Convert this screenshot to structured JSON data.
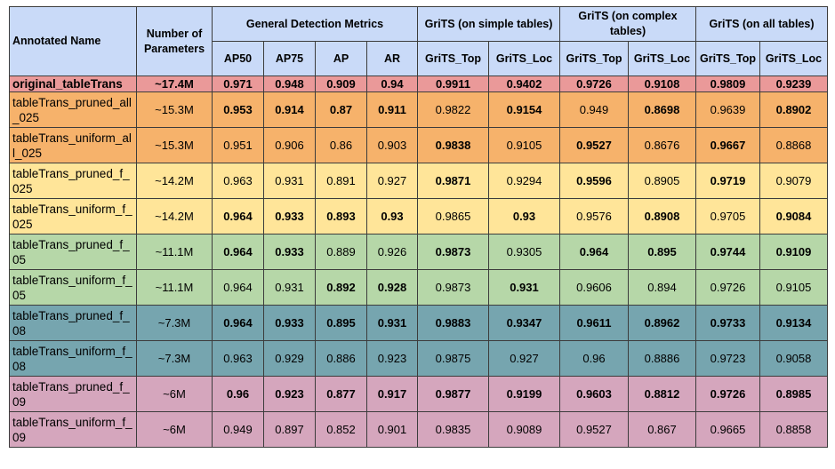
{
  "headers": {
    "annotated_name": "Annotated Name",
    "num_params": "Number of Parameters",
    "groups": [
      "General Detection Metrics",
      "GriTS (on simple tables)",
      "GriTS (on complex tables)",
      "GriTS (on all tables)"
    ],
    "columns": [
      "AP50",
      "AP75",
      "AP",
      "AR",
      "GriTS_Top",
      "GriTS_Loc",
      "GriTS_Top",
      "GriTS_Loc",
      "GriTS_Top",
      "GriTS_Loc"
    ]
  },
  "colors": {
    "header": "#c9daf8",
    "original": "#ea9999",
    "all_025": "#f6b26b",
    "f_025": "#ffe599",
    "f_05": "#b6d7a8",
    "f_08": "#76a5af",
    "f_09": "#d5a6bd"
  },
  "rows": [
    {
      "name": "original_tableTrans",
      "params": "~17.4M",
      "color": "original",
      "values": [
        "0.971",
        "0.948",
        "0.909",
        "0.94",
        "0.9911",
        "0.9402",
        "0.9726",
        "0.9108",
        "0.9809",
        "0.9239"
      ],
      "bold": [
        1,
        1,
        1,
        1,
        1,
        1,
        1,
        1,
        1,
        1
      ]
    },
    {
      "name": "tableTrans_pruned_all_025",
      "params": "~15.3M",
      "color": "all_025",
      "values": [
        "0.953",
        "0.914",
        "0.87",
        "0.911",
        "0.9822",
        "0.9154",
        "0.949",
        "0.8698",
        "0.9639",
        "0.8902"
      ],
      "bold": [
        1,
        1,
        1,
        1,
        0,
        1,
        0,
        1,
        0,
        1
      ]
    },
    {
      "name": "tableTrans_uniform_all_025",
      "params": "~15.3M",
      "color": "all_025",
      "values": [
        "0.951",
        "0.906",
        "0.86",
        "0.903",
        "0.9838",
        "0.9105",
        "0.9527",
        "0.8676",
        "0.9667",
        "0.8868"
      ],
      "bold": [
        0,
        0,
        0,
        0,
        1,
        0,
        1,
        0,
        1,
        0
      ]
    },
    {
      "name": "tableTrans_pruned_f_025",
      "params": "~14.2M",
      "color": "f_025",
      "values": [
        "0.963",
        "0.931",
        "0.891",
        "0.927",
        "0.9871",
        "0.9294",
        "0.9596",
        "0.8905",
        "0.9719",
        "0.9079"
      ],
      "bold": [
        0,
        0,
        0,
        0,
        1,
        0,
        1,
        0,
        1,
        0
      ]
    },
    {
      "name": "tableTrans_uniform_f_025",
      "params": "~14.2M",
      "color": "f_025",
      "values": [
        "0.964",
        "0.933",
        "0.893",
        "0.93",
        "0.9865",
        "0.93",
        "0.9576",
        "0.8908",
        "0.9705",
        "0.9084"
      ],
      "bold": [
        1,
        1,
        1,
        1,
        0,
        1,
        0,
        1,
        0,
        1
      ]
    },
    {
      "name": "tableTrans_pruned_f_05",
      "params": "~11.1M",
      "color": "f_05",
      "values": [
        "0.964",
        "0.933",
        "0.889",
        "0.926",
        "0.9873",
        "0.9305",
        "0.964",
        "0.895",
        "0.9744",
        "0.9109"
      ],
      "bold": [
        1,
        1,
        0,
        0,
        1,
        0,
        1,
        1,
        1,
        1
      ]
    },
    {
      "name": "tableTrans_uniform_f_05",
      "params": "~11.1M",
      "color": "f_05",
      "values": [
        "0.964",
        "0.931",
        "0.892",
        "0.928",
        "0.9873",
        "0.931",
        "0.9606",
        "0.894",
        "0.9726",
        "0.9105"
      ],
      "bold": [
        0,
        0,
        1,
        1,
        0,
        1,
        0,
        0,
        0,
        0
      ]
    },
    {
      "name": "tableTrans_pruned_f_08",
      "params": "~7.3M",
      "color": "f_08",
      "values": [
        "0.964",
        "0.933",
        "0.895",
        "0.931",
        "0.9883",
        "0.9347",
        "0.9611",
        "0.8962",
        "0.9733",
        "0.9134"
      ],
      "bold": [
        1,
        1,
        1,
        1,
        1,
        1,
        1,
        1,
        1,
        1
      ]
    },
    {
      "name": "tableTrans_uniform_f_08",
      "params": "~7.3M",
      "color": "f_08",
      "values": [
        "0.963",
        "0.929",
        "0.886",
        "0.923",
        "0.9875",
        "0.927",
        "0.96",
        "0.8886",
        "0.9723",
        "0.9058"
      ],
      "bold": [
        0,
        0,
        0,
        0,
        0,
        0,
        0,
        0,
        0,
        0
      ]
    },
    {
      "name": "tableTrans_pruned_f_09",
      "params": "~6M",
      "color": "f_09",
      "values": [
        "0.96",
        "0.923",
        "0.877",
        "0.917",
        "0.9877",
        "0.9199",
        "0.9603",
        "0.8812",
        "0.9726",
        "0.8985"
      ],
      "bold": [
        1,
        1,
        1,
        1,
        1,
        1,
        1,
        1,
        1,
        1
      ]
    },
    {
      "name": "tableTrans_uniform_f_09",
      "params": "~6M",
      "color": "f_09",
      "values": [
        "0.949",
        "0.897",
        "0.852",
        "0.901",
        "0.9835",
        "0.9089",
        "0.9527",
        "0.867",
        "0.9665",
        "0.8858"
      ],
      "bold": [
        0,
        0,
        0,
        0,
        0,
        0,
        0,
        0,
        0,
        0
      ]
    }
  ]
}
